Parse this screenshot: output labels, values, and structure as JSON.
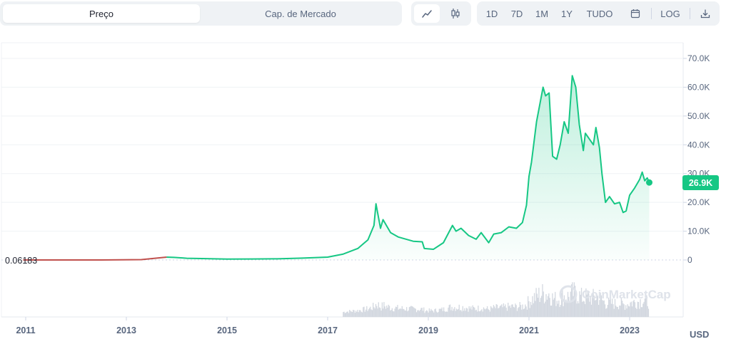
{
  "tabs": {
    "price": "Preço",
    "market_cap": "Cap. de Mercado"
  },
  "chart_type": {
    "line_icon": "line-chart-icon",
    "candle_icon": "candlestick-icon"
  },
  "ranges": [
    "1D",
    "7D",
    "1M",
    "1Y",
    "TUDO"
  ],
  "tools": {
    "calendar_icon": "calendar-icon",
    "log_label": "LOG",
    "download_icon": "download-icon"
  },
  "colors": {
    "accent": "#16c784",
    "area_fill": "#16c784",
    "early_line": "#c0504d",
    "grid": "#eff2f5",
    "volume": "#c7ccd6"
  },
  "watermark": "CoinMarketCap",
  "currency": "USD",
  "chart_data": {
    "type": "area",
    "title": "",
    "ylabel": "",
    "xlabel": "",
    "ylim": [
      0,
      74000
    ],
    "y_ticks": [
      "70.0K",
      "60.0K",
      "50.0K",
      "40.0K",
      "30.0K",
      "20.0K",
      "10.0K",
      "0"
    ],
    "y_tick_values": [
      70000,
      60000,
      50000,
      40000,
      30000,
      20000,
      10000,
      0
    ],
    "x_ticks": [
      "2011",
      "2013",
      "2015",
      "2017",
      "2019",
      "2021",
      "2023"
    ],
    "x_tick_values": [
      2011,
      2013,
      2015,
      2017,
      2019,
      2021,
      2023
    ],
    "xlim": [
      2010.65,
      2023.45
    ],
    "start_value_label": "0.06183",
    "current_value_label": "26.9K",
    "current_value": 26900,
    "series": [
      {
        "x": [
          2010.95,
          2011.5,
          2012.5,
          2013.3,
          2013.8,
          2013.95,
          2014.2,
          2014.5,
          2015.0,
          2015.5,
          2016.0,
          2016.5,
          2017.0,
          2017.3,
          2017.6,
          2017.8,
          2017.92,
          2017.96,
          2018.05,
          2018.1,
          2018.25,
          2018.4,
          2018.5,
          2018.7,
          2018.88,
          2018.92,
          2019.1,
          2019.3,
          2019.48,
          2019.55,
          2019.65,
          2019.8,
          2019.95,
          2020.05,
          2020.2,
          2020.3,
          2020.45,
          2020.6,
          2020.75,
          2020.87,
          2020.95,
          2021.0,
          2021.05,
          2021.15,
          2021.28,
          2021.33,
          2021.4,
          2021.47,
          2021.55,
          2021.62,
          2021.7,
          2021.78,
          2021.86,
          2021.93,
          2022.0,
          2022.08,
          2022.12,
          2022.2,
          2022.28,
          2022.33,
          2022.4,
          2022.45,
          2022.52,
          2022.6,
          2022.7,
          2022.8,
          2022.87,
          2022.93,
          2023.0,
          2023.1,
          2023.2,
          2023.25,
          2023.3,
          2023.35,
          2023.39
        ],
        "values": [
          0.06,
          5,
          8,
          120,
          1000,
          900,
          600,
          500,
          300,
          350,
          400,
          650,
          1000,
          2000,
          4000,
          7000,
          12000,
          19500,
          11000,
          14000,
          9500,
          8000,
          7500,
          6500,
          6300,
          4000,
          3700,
          6000,
          12000,
          10000,
          11000,
          8500,
          7200,
          9500,
          6000,
          9000,
          9500,
          11500,
          11000,
          13000,
          19000,
          29000,
          34000,
          48000,
          60000,
          57000,
          58000,
          36000,
          35000,
          40000,
          48000,
          44000,
          64000,
          60000,
          47000,
          38000,
          44000,
          42000,
          40000,
          46000,
          39000,
          30000,
          20000,
          22000,
          19500,
          20000,
          16500,
          17000,
          22500,
          25000,
          28000,
          30500,
          27500,
          28500,
          26900
        ]
      }
    ],
    "early_segment_end_x": 2013.9
  }
}
